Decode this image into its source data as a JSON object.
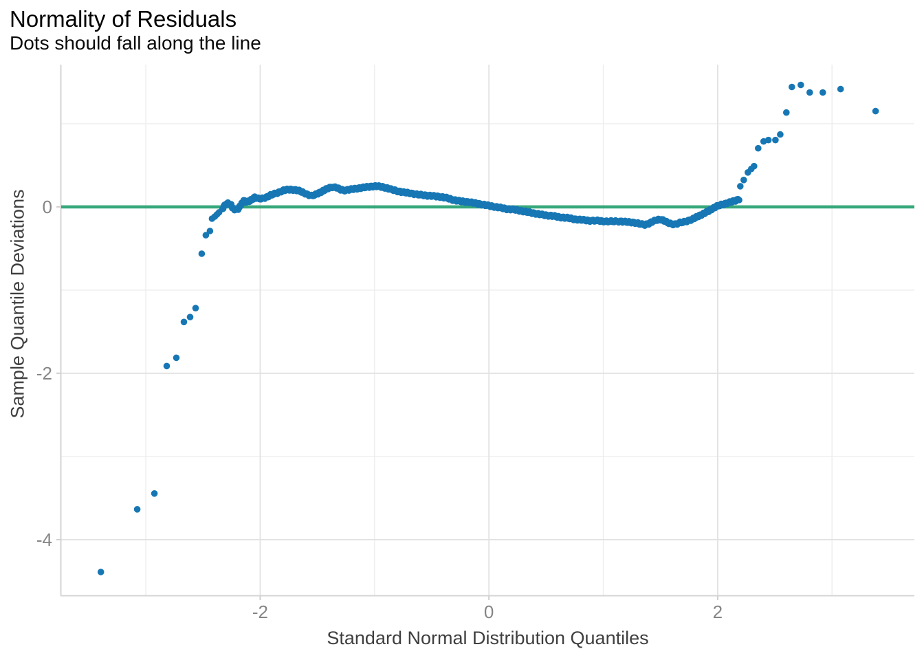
{
  "chart_data": {
    "type": "scatter",
    "title": "Normality of Residuals",
    "subtitle": "Dots should fall along the line",
    "xlabel": "Standard Normal Distribution Quantiles",
    "ylabel": "Sample Quantile Deviations",
    "xlim": [
      -3.74,
      3.72
    ],
    "ylim": [
      -4.67,
      1.71
    ],
    "grid": true,
    "legend": "none",
    "x_ticks": [
      {
        "value": -2,
        "label": "-2"
      },
      {
        "value": 0,
        "label": "0"
      },
      {
        "value": 2,
        "label": "2"
      }
    ],
    "y_ticks": [
      {
        "value": 0,
        "label": "0"
      },
      {
        "value": -2,
        "label": "-2"
      },
      {
        "value": -4,
        "label": "-4"
      }
    ],
    "x_minor_gridlines": [
      -3,
      -1,
      1,
      3
    ],
    "y_minor_gridlines": [
      1,
      -1,
      -3
    ],
    "reference_line": {
      "y": 0,
      "color": "#36a77a",
      "width": 4.6
    },
    "point_color": "#1777b4",
    "point_radius": 4.8,
    "series": [
      {
        "name": "worm-band",
        "render": "dense-band",
        "points": [
          [
            -2.33,
            -0.025
          ],
          [
            -2.306,
            0.033
          ],
          [
            -2.282,
            0.041
          ],
          [
            -2.258,
            0.033
          ],
          [
            -2.24,
            -0.017
          ],
          [
            -2.216,
            -0.033
          ],
          [
            -2.192,
            -0.025
          ],
          [
            -2.168,
            0.025
          ],
          [
            -2.144,
            0.075
          ],
          [
            -2.12,
            0.058
          ],
          [
            -2.096,
            0.066
          ],
          [
            -2.072,
            0.091
          ],
          [
            -2.048,
            0.116
          ],
          [
            -2.018,
            0.099
          ],
          [
            -1.982,
            0.099
          ],
          [
            -1.946,
            0.116
          ],
          [
            -1.91,
            0.141
          ],
          [
            -1.874,
            0.157
          ],
          [
            -1.838,
            0.174
          ],
          [
            -1.796,
            0.199
          ],
          [
            -1.754,
            0.207
          ],
          [
            -1.712,
            0.207
          ],
          [
            -1.67,
            0.199
          ],
          [
            -1.628,
            0.174
          ],
          [
            -1.586,
            0.149
          ],
          [
            -1.55,
            0.132
          ],
          [
            -1.514,
            0.149
          ],
          [
            -1.477,
            0.174
          ],
          [
            -1.441,
            0.199
          ],
          [
            -1.405,
            0.224
          ],
          [
            -1.369,
            0.24
          ],
          [
            -1.333,
            0.232
          ],
          [
            -1.297,
            0.207
          ],
          [
            -1.261,
            0.199
          ],
          [
            -1.225,
            0.207
          ],
          [
            -1.183,
            0.215
          ],
          [
            -1.141,
            0.224
          ],
          [
            -1.099,
            0.232
          ],
          [
            -1.057,
            0.24
          ],
          [
            -1.015,
            0.248
          ],
          [
            -0.973,
            0.248
          ],
          [
            -0.931,
            0.24
          ],
          [
            -0.889,
            0.224
          ],
          [
            -0.847,
            0.207
          ],
          [
            -0.799,
            0.19
          ],
          [
            -0.745,
            0.174
          ],
          [
            -0.691,
            0.166
          ],
          [
            -0.631,
            0.149
          ],
          [
            -0.571,
            0.141
          ],
          [
            -0.505,
            0.132
          ],
          [
            -0.438,
            0.124
          ],
          [
            -0.372,
            0.108
          ],
          [
            -0.306,
            0.083
          ],
          [
            -0.24,
            0.066
          ],
          [
            -0.174,
            0.058
          ],
          [
            -0.108,
            0.041
          ],
          [
            -0.042,
            0.025
          ],
          [
            0.024,
            0.008
          ],
          [
            0.09,
            -0.008
          ],
          [
            0.156,
            -0.025
          ],
          [
            0.222,
            -0.033
          ],
          [
            0.288,
            -0.05
          ],
          [
            0.354,
            -0.066
          ],
          [
            0.42,
            -0.083
          ],
          [
            0.487,
            -0.099
          ],
          [
            0.553,
            -0.108
          ],
          [
            0.619,
            -0.124
          ],
          [
            0.685,
            -0.132
          ],
          [
            0.751,
            -0.149
          ],
          [
            0.817,
            -0.157
          ],
          [
            0.883,
            -0.166
          ],
          [
            0.949,
            -0.166
          ],
          [
            1.015,
            -0.174
          ],
          [
            1.081,
            -0.174
          ],
          [
            1.147,
            -0.174
          ],
          [
            1.213,
            -0.182
          ],
          [
            1.279,
            -0.19
          ],
          [
            1.327,
            -0.207
          ],
          [
            1.363,
            -0.215
          ],
          [
            1.399,
            -0.199
          ],
          [
            1.435,
            -0.174
          ],
          [
            1.471,
            -0.157
          ],
          [
            1.501,
            -0.149
          ],
          [
            1.532,
            -0.166
          ],
          [
            1.562,
            -0.19
          ],
          [
            1.598,
            -0.207
          ],
          [
            1.634,
            -0.207
          ],
          [
            1.67,
            -0.19
          ],
          [
            1.706,
            -0.182
          ],
          [
            1.742,
            -0.166
          ],
          [
            1.778,
            -0.149
          ],
          [
            1.814,
            -0.124
          ],
          [
            1.85,
            -0.099
          ],
          [
            1.886,
            -0.075
          ],
          [
            1.922,
            -0.05
          ],
          [
            1.958,
            -0.017
          ],
          [
            1.994,
            0.008
          ],
          [
            2.03,
            0.025
          ],
          [
            2.072,
            0.041
          ],
          [
            2.114,
            0.058
          ],
          [
            2.156,
            0.075
          ],
          [
            2.198,
            0.099
          ]
        ]
      },
      {
        "name": "isolated-points",
        "render": "points",
        "points": [
          [
            -3.393,
            -4.389
          ],
          [
            -3.075,
            -3.635
          ],
          [
            -2.925,
            -3.445
          ],
          [
            -2.817,
            -1.913
          ],
          [
            -2.733,
            -1.814
          ],
          [
            -2.667,
            -1.383
          ],
          [
            -2.613,
            -1.325
          ],
          [
            -2.565,
            -1.217
          ],
          [
            -2.511,
            -0.563
          ],
          [
            -2.475,
            -0.34
          ],
          [
            -2.439,
            -0.29
          ],
          [
            -2.421,
            -0.141
          ],
          [
            -2.397,
            -0.116
          ],
          [
            -2.378,
            -0.091
          ],
          [
            -2.36,
            -0.066
          ],
          [
            2.198,
            0.248
          ],
          [
            2.228,
            0.323
          ],
          [
            2.264,
            0.414
          ],
          [
            2.294,
            0.456
          ],
          [
            2.318,
            0.489
          ],
          [
            2.354,
            0.704
          ],
          [
            2.402,
            0.787
          ],
          [
            2.444,
            0.803
          ],
          [
            2.505,
            0.803
          ],
          [
            2.547,
            0.87
          ],
          [
            2.601,
            1.134
          ],
          [
            2.649,
            1.441
          ],
          [
            2.727,
            1.466
          ],
          [
            2.805,
            1.375
          ],
          [
            2.919,
            1.375
          ],
          [
            3.075,
            1.416
          ],
          [
            3.381,
            1.151
          ]
        ]
      }
    ],
    "colors": {
      "major_grid": "#e2e2e2",
      "minor_grid": "#ededed",
      "axis_line": "#d4d4d4",
      "tick_mark": "#cfcfcf",
      "tick_label": "#858585",
      "axis_title": "#3f3f3f",
      "title": "#000000"
    }
  }
}
